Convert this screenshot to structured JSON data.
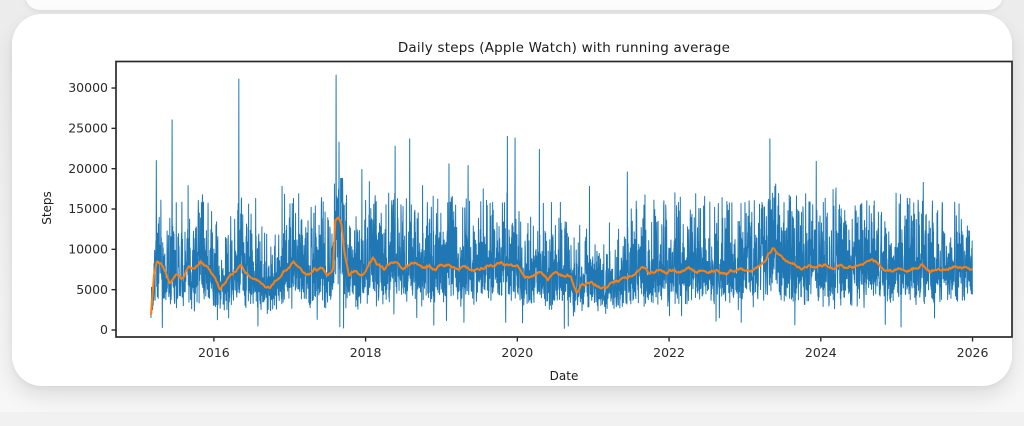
{
  "page": {
    "background_color": "#ececec",
    "card_color": "#ffffff"
  },
  "chart_data": {
    "type": "line",
    "title": "Daily steps (Apple Watch) with running average",
    "xlabel": "Date",
    "ylabel": "Steps",
    "x_ticks": [
      2016,
      2018,
      2020,
      2022,
      2024,
      2026
    ],
    "y_ticks": [
      0,
      5000,
      10000,
      15000,
      20000,
      25000,
      30000
    ],
    "xlim_years": [
      2014.71,
      2026.52
    ],
    "ylim_steps": [
      -870,
      33290
    ],
    "x_data_range": [
      2015.17,
      2026.0
    ],
    "grid": false,
    "legend": "none",
    "axis_color": "#2b2b2b",
    "series": [
      {
        "name": "Daily steps",
        "color": "#1f77b4",
        "line_width": 1.0,
        "kind": "noisy-daily"
      },
      {
        "name": "Running average",
        "color": "#ff7f0e",
        "line_width": 2.0,
        "kind": "smooth-average"
      }
    ],
    "running_average_knots": [
      [
        2015.17,
        1900
      ],
      [
        2015.21,
        6800
      ],
      [
        2015.25,
        8600
      ],
      [
        2015.33,
        7900
      ],
      [
        2015.42,
        6100
      ],
      [
        2015.5,
        7000
      ],
      [
        2015.58,
        6300
      ],
      [
        2015.67,
        7900
      ],
      [
        2015.75,
        7300
      ],
      [
        2015.83,
        8600
      ],
      [
        2015.92,
        7800
      ],
      [
        2016.0,
        6600
      ],
      [
        2016.08,
        5000
      ],
      [
        2016.17,
        6300
      ],
      [
        2016.25,
        7200
      ],
      [
        2016.36,
        8000
      ],
      [
        2016.45,
        7000
      ],
      [
        2016.55,
        6500
      ],
      [
        2016.67,
        5600
      ],
      [
        2016.75,
        5500
      ],
      [
        2016.83,
        6400
      ],
      [
        2016.92,
        7300
      ],
      [
        2017.05,
        8200
      ],
      [
        2017.15,
        7300
      ],
      [
        2017.25,
        6900
      ],
      [
        2017.33,
        7700
      ],
      [
        2017.42,
        7500
      ],
      [
        2017.5,
        7000
      ],
      [
        2017.57,
        7700
      ],
      [
        2017.6,
        13900
      ],
      [
        2017.64,
        14300
      ],
      [
        2017.68,
        13500
      ],
      [
        2017.72,
        10000
      ],
      [
        2017.78,
        6900
      ],
      [
        2017.85,
        7300
      ],
      [
        2017.92,
        6700
      ],
      [
        2018.0,
        7400
      ],
      [
        2018.1,
        9000
      ],
      [
        2018.18,
        8000
      ],
      [
        2018.25,
        7400
      ],
      [
        2018.33,
        8400
      ],
      [
        2018.42,
        8600
      ],
      [
        2018.5,
        7700
      ],
      [
        2018.58,
        8300
      ],
      [
        2018.67,
        8200
      ],
      [
        2018.75,
        7500
      ],
      [
        2018.83,
        7800
      ],
      [
        2018.92,
        7400
      ],
      [
        2019.0,
        8100
      ],
      [
        2019.1,
        8300
      ],
      [
        2019.2,
        7600
      ],
      [
        2019.3,
        7900
      ],
      [
        2019.4,
        7400
      ],
      [
        2019.5,
        7600
      ],
      [
        2019.6,
        8100
      ],
      [
        2019.7,
        7800
      ],
      [
        2019.8,
        8300
      ],
      [
        2019.9,
        7900
      ],
      [
        2020.0,
        7700
      ],
      [
        2020.1,
        6300
      ],
      [
        2020.2,
        6700
      ],
      [
        2020.3,
        7200
      ],
      [
        2020.4,
        6300
      ],
      [
        2020.5,
        6900
      ],
      [
        2020.6,
        6500
      ],
      [
        2020.7,
        6800
      ],
      [
        2020.78,
        4600
      ],
      [
        2020.85,
        5400
      ],
      [
        2020.95,
        5900
      ],
      [
        2021.05,
        5500
      ],
      [
        2021.15,
        5200
      ],
      [
        2021.25,
        5600
      ],
      [
        2021.35,
        6000
      ],
      [
        2021.45,
        6400
      ],
      [
        2021.55,
        7200
      ],
      [
        2021.65,
        7500
      ],
      [
        2021.75,
        7100
      ],
      [
        2021.85,
        7400
      ],
      [
        2021.95,
        7200
      ],
      [
        2022.05,
        7500
      ],
      [
        2022.15,
        7200
      ],
      [
        2022.25,
        7600
      ],
      [
        2022.35,
        7300
      ],
      [
        2022.45,
        7500
      ],
      [
        2022.55,
        7200
      ],
      [
        2022.65,
        7400
      ],
      [
        2022.75,
        7000
      ],
      [
        2022.85,
        7300
      ],
      [
        2022.95,
        7500
      ],
      [
        2023.05,
        7400
      ],
      [
        2023.15,
        7700
      ],
      [
        2023.25,
        8600
      ],
      [
        2023.37,
        10400
      ],
      [
        2023.45,
        9300
      ],
      [
        2023.55,
        8400
      ],
      [
        2023.65,
        8000
      ],
      [
        2023.75,
        7800
      ],
      [
        2023.85,
        8100
      ],
      [
        2023.95,
        7900
      ],
      [
        2024.05,
        8200
      ],
      [
        2024.15,
        7800
      ],
      [
        2024.25,
        8100
      ],
      [
        2024.35,
        7700
      ],
      [
        2024.45,
        8000
      ],
      [
        2024.55,
        7800
      ],
      [
        2024.65,
        8500
      ],
      [
        2024.75,
        8300
      ],
      [
        2024.85,
        7600
      ],
      [
        2024.95,
        7400
      ],
      [
        2025.05,
        7700
      ],
      [
        2025.15,
        7300
      ],
      [
        2025.25,
        7600
      ],
      [
        2025.35,
        7900
      ],
      [
        2025.45,
        7400
      ],
      [
        2025.55,
        7700
      ],
      [
        2025.65,
        7500
      ],
      [
        2025.75,
        7800
      ],
      [
        2025.85,
        7600
      ],
      [
        2025.95,
        7700
      ],
      [
        2026.0,
        7600
      ]
    ],
    "notable_spikes": [
      [
        2015.24,
        21000
      ],
      [
        2015.45,
        26050
      ],
      [
        2015.66,
        17900
      ],
      [
        2016.33,
        31100
      ],
      [
        2016.55,
        16300
      ],
      [
        2016.9,
        17800
      ],
      [
        2017.05,
        16300
      ],
      [
        2017.61,
        31600
      ],
      [
        2017.65,
        23300
      ],
      [
        2017.95,
        19900
      ],
      [
        2018.05,
        18400
      ],
      [
        2018.39,
        22800
      ],
      [
        2018.58,
        23700
      ],
      [
        2018.75,
        17900
      ],
      [
        2019.1,
        20600
      ],
      [
        2019.35,
        20400
      ],
      [
        2019.55,
        17500
      ],
      [
        2019.87,
        24000
      ],
      [
        2019.97,
        23800
      ],
      [
        2020.29,
        22400
      ],
      [
        2020.45,
        15800
      ],
      [
        2020.95,
        17800
      ],
      [
        2021.45,
        19600
      ],
      [
        2021.8,
        16100
      ],
      [
        2022.1,
        15400
      ],
      [
        2022.35,
        16900
      ],
      [
        2022.6,
        15200
      ],
      [
        2023.0,
        15800
      ],
      [
        2023.33,
        23700
      ],
      [
        2023.6,
        16500
      ],
      [
        2023.8,
        16900
      ],
      [
        2023.94,
        20900
      ],
      [
        2024.2,
        17600
      ],
      [
        2024.7,
        15400
      ],
      [
        2025.05,
        16800
      ],
      [
        2025.35,
        18300
      ],
      [
        2025.6,
        15800
      ]
    ],
    "near_zero_dips": [
      [
        2015.32,
        300
      ],
      [
        2016.58,
        500
      ],
      [
        2017.66,
        400
      ],
      [
        2017.71,
        250
      ],
      [
        2018.9,
        600
      ],
      [
        2020.07,
        900
      ],
      [
        2020.62,
        200
      ],
      [
        2020.67,
        500
      ],
      [
        2022.62,
        1100
      ],
      [
        2024.85,
        700
      ],
      [
        2025.5,
        1500
      ]
    ],
    "daily_noise_model": {
      "seed": 1337,
      "sigma": 0.38,
      "spike_prob": 0.01,
      "spike_gain": [
        1.7,
        2.4
      ],
      "dip_prob": 0.006,
      "dip_gain": [
        0.05,
        0.35
      ],
      "soft_cap": 15500,
      "hard_cap": 18800,
      "floor": 120
    },
    "average_wiggle_model": {
      "seed": 2025,
      "step_years": 0.008,
      "impulse": 260,
      "damping": 0.9,
      "max": 320
    }
  }
}
